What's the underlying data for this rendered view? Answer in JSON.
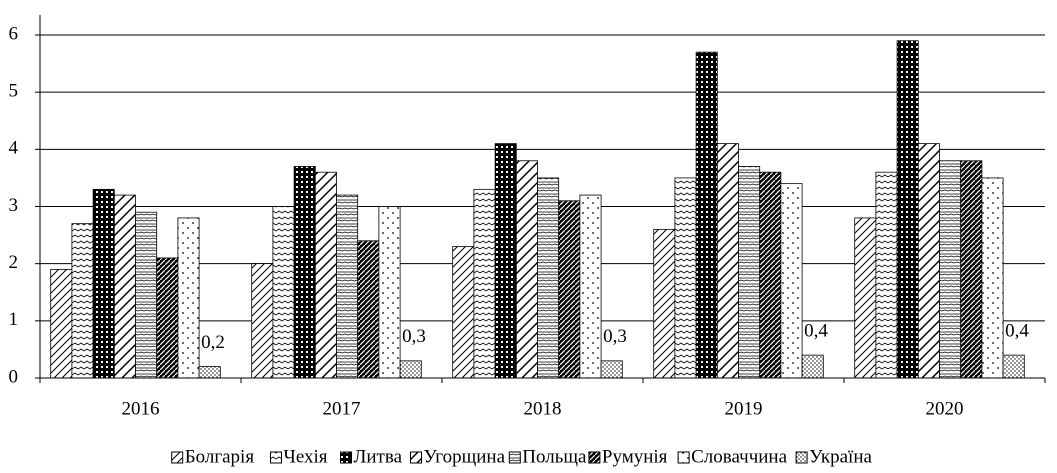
{
  "chart_data": {
    "type": "bar",
    "categories": [
      "2016",
      "2017",
      "2018",
      "2019",
      "2020"
    ],
    "series": [
      {
        "name": "Болгарія",
        "color": "#000000",
        "values": [
          1.9,
          2.0,
          2.3,
          2.6,
          2.8
        ]
      },
      {
        "name": "Чехія",
        "color": "#000000",
        "values": [
          2.7,
          3.0,
          3.3,
          3.5,
          3.6
        ]
      },
      {
        "name": "Литва",
        "color": "#000000",
        "values": [
          3.3,
          3.7,
          4.1,
          5.7,
          5.9
        ]
      },
      {
        "name": "Угорщина",
        "color": "#000000",
        "values": [
          3.2,
          3.6,
          3.8,
          4.1,
          4.1
        ]
      },
      {
        "name": "Польща",
        "color": "#000000",
        "values": [
          2.9,
          3.2,
          3.5,
          3.7,
          3.8
        ]
      },
      {
        "name": "Румунія",
        "color": "#000000",
        "values": [
          2.1,
          2.4,
          3.1,
          3.6,
          3.8
        ]
      },
      {
        "name": "Словаччина",
        "color": "#000000",
        "values": [
          2.8,
          3.0,
          3.2,
          3.4,
          3.5
        ]
      },
      {
        "name": "Україна",
        "color": "#000000",
        "values": [
          0.2,
          0.3,
          0.3,
          0.4,
          0.4
        ],
        "value_labels": [
          "0,2",
          "0,3",
          "0,3",
          "0,4",
          "0,4"
        ]
      }
    ],
    "ylim": [
      0,
      6
    ],
    "yticks": [
      0,
      1,
      2,
      3,
      4,
      5,
      6
    ],
    "grid": true,
    "legend": "bottom"
  }
}
